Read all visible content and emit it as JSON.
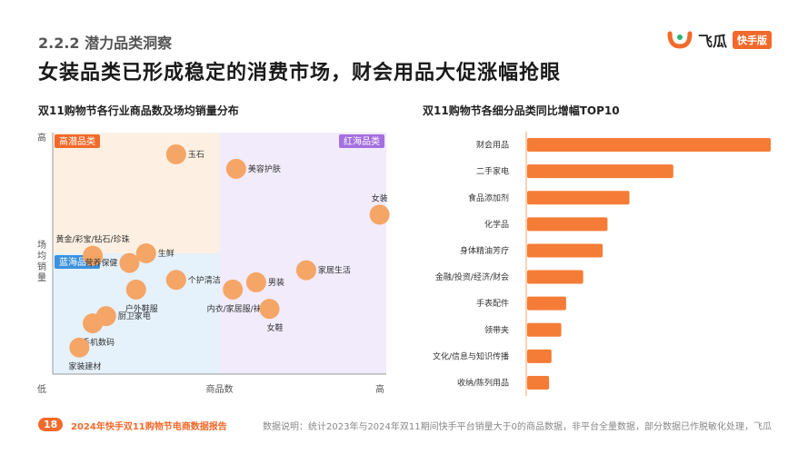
{
  "header": {
    "section": "2.2.2 潜力品类洞察",
    "headline": "女装品类已形成稳定的消费市场，财会用品大促涨幅抢眼"
  },
  "brand": {
    "name": "飞瓜",
    "badge": "快手版",
    "accent": "#f26a2b"
  },
  "footer": {
    "page": "18",
    "report_title": "2024年快手双11购物节电商数据报告",
    "note": "数据说明：统计2023年与2024年双11期间快手平台销量大于0的商品数据，非平台全量数据，部分数据已作脱敏化处理，飞瓜"
  },
  "chart_data": [
    {
      "type": "scatter",
      "title": "双11购物节各行业商品数及场均销量分布",
      "xlabel": "商品数",
      "ylabel": "场均销量",
      "x_low_label": "低",
      "x_high_label": "高",
      "y_high_label": "高",
      "xlim": [
        0,
        100
      ],
      "ylim": [
        0,
        100
      ],
      "quadrants": [
        {
          "label": "高潜品类",
          "color": "#fdf0e3",
          "badge_color": "#f26a2b",
          "x": [
            0,
            50
          ],
          "y": [
            50,
            100
          ]
        },
        {
          "label": "红海品类",
          "color": "#f1ebfb",
          "badge_color": "#a46fe0",
          "x": [
            50,
            100
          ],
          "y": [
            0,
            100
          ]
        },
        {
          "label": "蓝海品类",
          "color": "#e5f1fb",
          "badge_color": "#3d92e0",
          "x": [
            0,
            50
          ],
          "y": [
            0,
            50
          ]
        }
      ],
      "point_color": "#f5a566",
      "points": [
        {
          "label": "玉石",
          "x": 37,
          "y": 91,
          "label_pos": "right"
        },
        {
          "label": "美容护肤",
          "x": 55,
          "y": 85,
          "label_pos": "right"
        },
        {
          "label": "女装",
          "x": 98,
          "y": 66,
          "label_pos": "above"
        },
        {
          "label": "黄金/彩宝/钻石/珍珠",
          "x": 12,
          "y": 49,
          "label_pos": "above"
        },
        {
          "label": "生鲜",
          "x": 28,
          "y": 50,
          "label_pos": "right"
        },
        {
          "label": "营养保健",
          "x": 23,
          "y": 46,
          "label_pos": "left"
        },
        {
          "label": "个护清洁",
          "x": 37,
          "y": 39,
          "label_pos": "right"
        },
        {
          "label": "户外鞋服",
          "x": 25,
          "y": 35,
          "label_pos": "below"
        },
        {
          "label": "男装",
          "x": 61,
          "y": 38,
          "label_pos": "right"
        },
        {
          "label": "家居生活",
          "x": 76,
          "y": 43,
          "label_pos": "right"
        },
        {
          "label": "内衣/家居服/袜子",
          "x": 54,
          "y": 35,
          "label_pos": "below"
        },
        {
          "label": "女鞋",
          "x": 65,
          "y": 27,
          "label_pos": "below"
        },
        {
          "label": "厨卫家电",
          "x": 16,
          "y": 24,
          "label_pos": "right"
        },
        {
          "label": "手机数码",
          "x": 12,
          "y": 21,
          "label_pos": "below"
        },
        {
          "label": "家装建材",
          "x": 8,
          "y": 11,
          "label_pos": "below"
        }
      ]
    },
    {
      "type": "bar",
      "orientation": "horizontal",
      "title": "双11购物节各细分品类同比增幅TOP10",
      "color": "#f57c36",
      "categories": [
        "财会用品",
        "二手家电",
        "食品添加剂",
        "化学品",
        "身体精油芳疗",
        "金融/投资/经济/财会",
        "手表配件",
        "领带夹",
        "文化/信息与知识传播",
        "收纳/陈列用品"
      ],
      "values": [
        100,
        60,
        42,
        33,
        31,
        23,
        16,
        14,
        10,
        9
      ],
      "xlim": [
        0,
        100
      ]
    }
  ]
}
